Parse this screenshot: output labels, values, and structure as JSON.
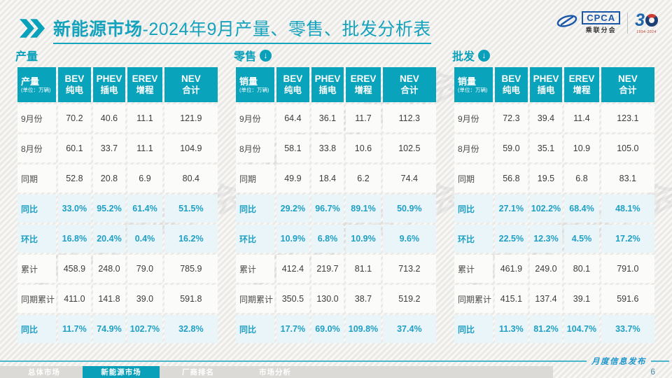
{
  "title": {
    "bold": "新能源市场",
    "rest": "-2024年9月产量、零售、批发分析表"
  },
  "logos": {
    "cpca_text": "CPCA",
    "cpca_sub": "乘联分会",
    "anniv_digit": "3",
    "anniv_years": "1994-2024"
  },
  "watermark_text": "CPCA 乘联分会",
  "unit_note": "(单位：万辆)",
  "column_headers": [
    {
      "en": "BEV",
      "cn": "纯电"
    },
    {
      "en": "PHEV",
      "cn": "插电"
    },
    {
      "en": "EREV",
      "cn": "增程"
    },
    {
      "en": "NEV",
      "cn": "合计"
    }
  ],
  "tables": [
    {
      "id": "production",
      "section": "产量",
      "has_arrow": false,
      "corner": "产量",
      "rows": [
        {
          "label": "9月份",
          "values": [
            "70.2",
            "40.6",
            "11.1",
            "121.9"
          ],
          "highlight": false
        },
        {
          "label": "8月份",
          "values": [
            "60.1",
            "33.7",
            "11.1",
            "104.9"
          ],
          "highlight": false
        },
        {
          "label": "同期",
          "values": [
            "52.8",
            "20.8",
            "6.9",
            "80.4"
          ],
          "highlight": false
        },
        {
          "label": "同比",
          "values": [
            "33.0%",
            "95.2%",
            "61.4%",
            "51.5%"
          ],
          "highlight": true
        },
        {
          "label": "环比",
          "values": [
            "16.8%",
            "20.4%",
            "0.4%",
            "16.2%"
          ],
          "highlight": true
        },
        {
          "label": "累计",
          "values": [
            "458.9",
            "248.0",
            "79.0",
            "785.9"
          ],
          "highlight": false
        },
        {
          "label": "同期累计",
          "values": [
            "411.0",
            "141.8",
            "39.0",
            "591.8"
          ],
          "highlight": false
        },
        {
          "label": "同比",
          "values": [
            "11.7%",
            "74.9%",
            "102.7%",
            "32.8%"
          ],
          "highlight": true
        }
      ]
    },
    {
      "id": "retail",
      "section": "零售",
      "has_arrow": true,
      "corner": "销量",
      "rows": [
        {
          "label": "9月份",
          "values": [
            "64.4",
            "36.1",
            "11.7",
            "112.3"
          ],
          "highlight": false
        },
        {
          "label": "8月份",
          "values": [
            "58.1",
            "33.8",
            "10.6",
            "102.5"
          ],
          "highlight": false
        },
        {
          "label": "同期",
          "values": [
            "49.9",
            "18.4",
            "6.2",
            "74.4"
          ],
          "highlight": false
        },
        {
          "label": "同比",
          "values": [
            "29.2%",
            "96.7%",
            "89.1%",
            "50.9%"
          ],
          "highlight": true
        },
        {
          "label": "环比",
          "values": [
            "10.9%",
            "6.8%",
            "10.9%",
            "9.6%"
          ],
          "highlight": true
        },
        {
          "label": "累计",
          "values": [
            "412.4",
            "219.7",
            "81.1",
            "713.2"
          ],
          "highlight": false
        },
        {
          "label": "同期累计",
          "values": [
            "350.5",
            "130.0",
            "38.7",
            "519.2"
          ],
          "highlight": false
        },
        {
          "label": "同比",
          "values": [
            "17.7%",
            "69.0%",
            "109.8%",
            "37.4%"
          ],
          "highlight": true
        }
      ]
    },
    {
      "id": "wholesale",
      "section": "批发",
      "has_arrow": true,
      "corner": "销量",
      "rows": [
        {
          "label": "9月份",
          "values": [
            "72.3",
            "39.4",
            "11.4",
            "123.1"
          ],
          "highlight": false
        },
        {
          "label": "8月份",
          "values": [
            "59.0",
            "35.1",
            "10.9",
            "105.0"
          ],
          "highlight": false
        },
        {
          "label": "同期",
          "values": [
            "56.8",
            "19.5",
            "6.8",
            "83.1"
          ],
          "highlight": false
        },
        {
          "label": "同比",
          "values": [
            "27.1%",
            "102.2%",
            "68.4%",
            "48.1%"
          ],
          "highlight": true
        },
        {
          "label": "环比",
          "values": [
            "22.5%",
            "12.3%",
            "4.5%",
            "17.2%"
          ],
          "highlight": true
        },
        {
          "label": "累计",
          "values": [
            "461.9",
            "249.0",
            "80.1",
            "791.0"
          ],
          "highlight": false
        },
        {
          "label": "同期累计",
          "values": [
            "415.1",
            "137.4",
            "39.1",
            "591.6"
          ],
          "highlight": false
        },
        {
          "label": "同比",
          "values": [
            "11.3%",
            "81.2%",
            "104.7%",
            "33.7%"
          ],
          "highlight": true
        }
      ]
    }
  ],
  "footer": {
    "tabs": [
      {
        "label": "总体市场",
        "active": false
      },
      {
        "label": "新能源市场",
        "active": true
      },
      {
        "label": "厂商排名",
        "active": false
      },
      {
        "label": "市场分析",
        "active": false
      }
    ],
    "publication": "月度信息发布",
    "page_number": "6"
  },
  "colors": {
    "teal": "#09a3bc",
    "title_teal": "#14a2bc",
    "highlight_bg": "#e9f5f9",
    "highlight_text": "#1f9fc4",
    "logo_blue": "#1a57a8",
    "logo_red": "#d03a33",
    "footer_line": "#49b6c9",
    "publication_blue": "#1e96cc"
  }
}
